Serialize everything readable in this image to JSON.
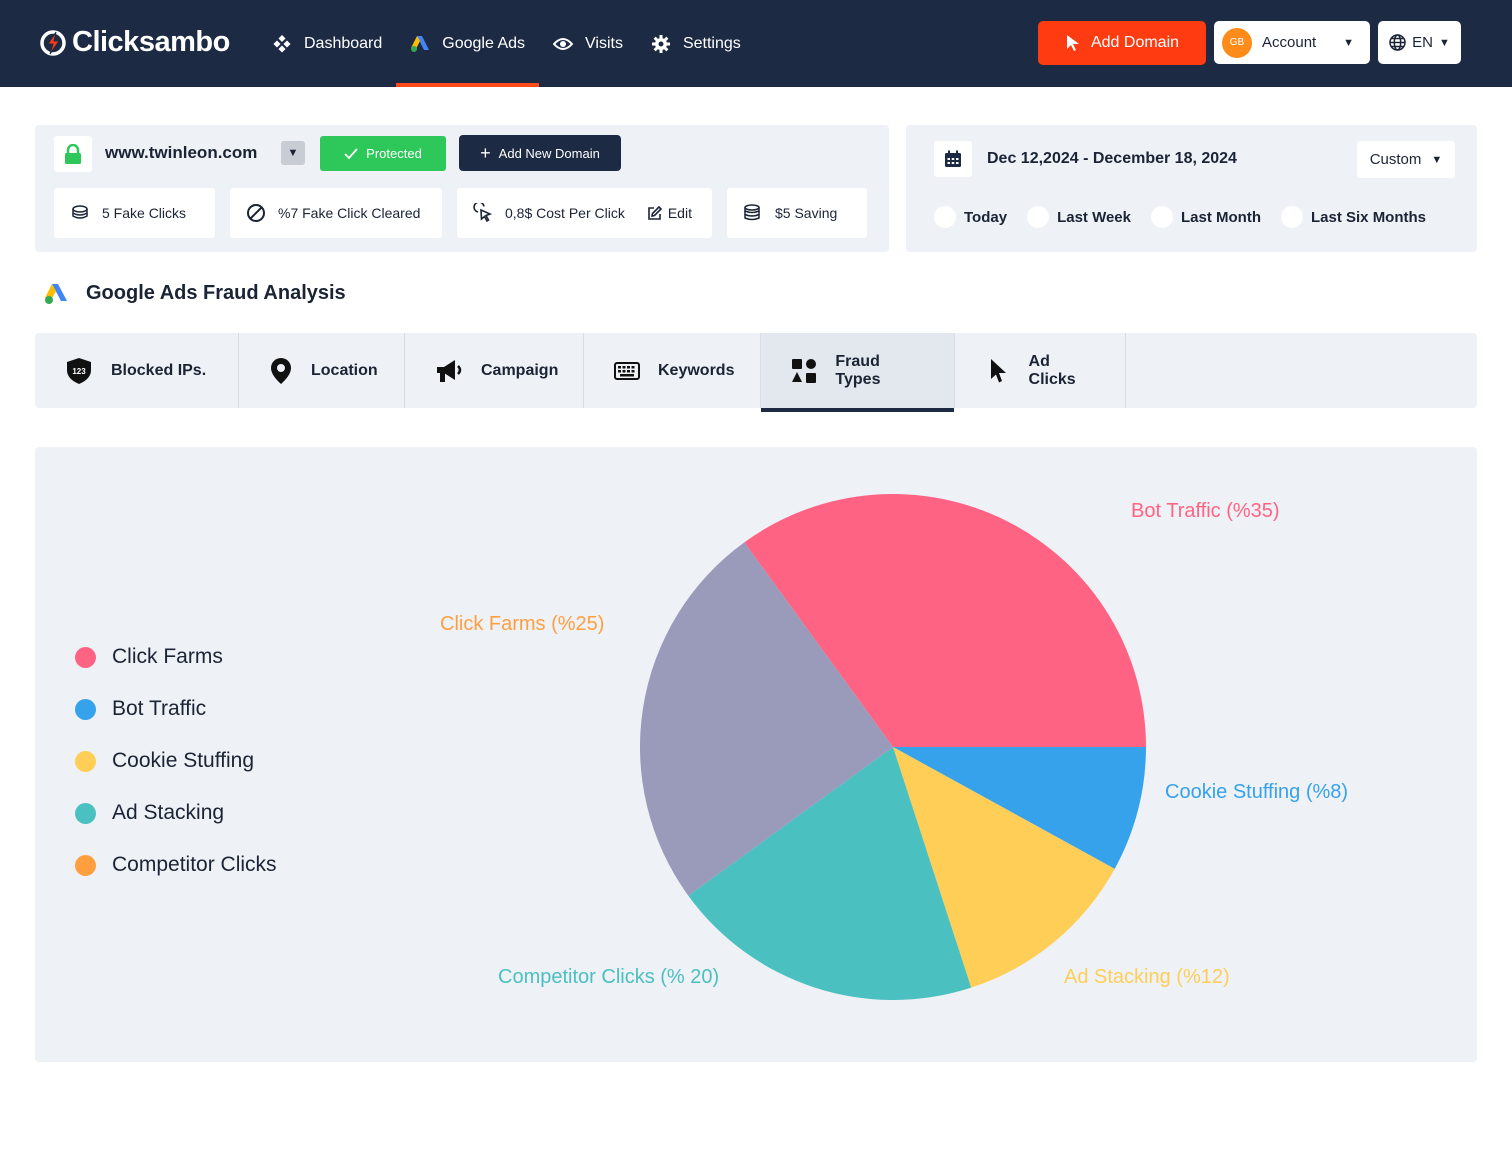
{
  "header": {
    "logo_text": "Clicksambo",
    "nav": [
      {
        "label": "Dashboard",
        "icon": "dashboard-icon"
      },
      {
        "label": "Google Ads",
        "icon": "google-ads-icon"
      },
      {
        "label": "Visits",
        "icon": "eye-icon"
      },
      {
        "label": "Settings",
        "icon": "gear-icon"
      }
    ],
    "add_domain_label": "Add Domain",
    "account": {
      "initials": "GB",
      "label": "Account"
    },
    "language": "EN"
  },
  "domain": {
    "name": "www.twinleon.com",
    "status": "Protected",
    "add_new_label": "Add New Domain",
    "stats": {
      "fake_clicks": "5 Fake Clicks",
      "cleared": "%7 Fake Click Cleared",
      "cpc": "0,8$ Cost Per Click",
      "edit": "Edit",
      "saving": "$5 Saving"
    }
  },
  "date_filter": {
    "range": "Dec 12,2024 - December 18, 2024",
    "select_value": "Custom",
    "options": [
      "Today",
      "Last Week",
      "Last Month",
      "Last Six Months"
    ]
  },
  "section": {
    "title": "Google Ads Fraud Analysis"
  },
  "tabs": [
    {
      "label": "Blocked IPs.",
      "icon": "shield-123-icon"
    },
    {
      "label": "Location",
      "icon": "location-pin-icon"
    },
    {
      "label": "Campaign",
      "icon": "megaphone-icon"
    },
    {
      "label": "Keywords",
      "icon": "keyboard-icon"
    },
    {
      "label": "Fraud Types",
      "icon": "shapes-icon"
    },
    {
      "label": "Ad Clicks",
      "icon": "cursor-icon"
    }
  ],
  "active_tab": "Fraud Types",
  "colors": {
    "nav_bg": "#1d2a44",
    "accent": "#ff3b12",
    "protected": "#2ec75a"
  },
  "chart_data": {
    "type": "pie",
    "legend": [
      {
        "label": "Click Farms",
        "color": "#ff6384"
      },
      {
        "label": "Bot Traffic",
        "color": "#36a2eb"
      },
      {
        "label": "Cookie Stuffing",
        "color": "#ffce56"
      },
      {
        "label": "Ad Stacking",
        "color": "#4bc0c0"
      },
      {
        "label": "Competitor Clicks",
        "color": "#ff9f40"
      }
    ],
    "slices": [
      {
        "name": "Bot Traffic",
        "label": "Bot Traffic",
        "pct_label": "(%35)",
        "value": 35,
        "color": "#ff6384"
      },
      {
        "name": "Cookie Stuffing",
        "label": "Cookie Stuffing",
        "pct_label": "(%8)",
        "value": 8,
        "color": "#36a2eb"
      },
      {
        "name": "Ad Stacking",
        "label": "Ad Stacking",
        "pct_label": "(%12)",
        "value": 12,
        "color": "#ffce56"
      },
      {
        "name": "Competitor Clicks",
        "label": "Competitor Clicks",
        "pct_label": "(% 20)",
        "value": 20,
        "color": "#4bc0c0"
      },
      {
        "name": "Click Farms",
        "label": "Click Farms",
        "pct_label": "(%25)",
        "value": 25,
        "color": "#9a9aba"
      }
    ],
    "label_colors": {
      "Bot Traffic": "#ff6384",
      "Cookie Stuffing": "#36a2eb",
      "Ad Stacking": "#ffce56",
      "Competitor Clicks": "#4bc0c0",
      "Click Farms": "#ff9f40"
    }
  }
}
